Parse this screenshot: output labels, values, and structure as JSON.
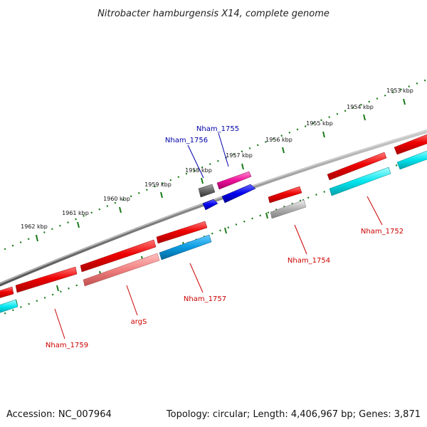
{
  "title": "Nitrobacter hamburgensis X14, complete genome",
  "footer": {
    "accession": "Accession: NC_007964",
    "summary": "Topology: circular; Length: 4,406,967 bp; Genes: 3,871"
  },
  "ticks": [
    {
      "label": "1953 kbp"
    },
    {
      "label": "1954 kbp"
    },
    {
      "label": "1955 kbp"
    },
    {
      "label": "1956 kbp"
    },
    {
      "label": "1957 kbp"
    },
    {
      "label": "1958 kbp"
    },
    {
      "label": "1959 kbp"
    },
    {
      "label": "1960 kbp"
    },
    {
      "label": "1961 kbp"
    },
    {
      "label": "1962 kbp"
    }
  ],
  "gene_labels": [
    {
      "text": "Nham_1752",
      "color": "#cc0000"
    },
    {
      "text": "Nham_1754",
      "color": "#cc0000"
    },
    {
      "text": "Nham_1755",
      "color": "#0000aa"
    },
    {
      "text": "Nham_1756",
      "color": "#0000aa"
    },
    {
      "text": "Nham_1757",
      "color": "#cc0000"
    },
    {
      "text": "argS",
      "color": "#cc0000"
    },
    {
      "text": "Nham_1759",
      "color": "#cc0000"
    }
  ],
  "colors": {
    "cds": "#ee0000",
    "cds_light": "#f08080",
    "gene_cyan": "#00e5ee",
    "gene_blue": "#0a8fd0",
    "gene_grey": "#aaaaaa",
    "gene_dark_grey": "#666666",
    "gene_magenta": "#ee1199",
    "gene_navy": "#0000ee",
    "backbone": "#888888",
    "ticks": "#1a7a1a"
  }
}
